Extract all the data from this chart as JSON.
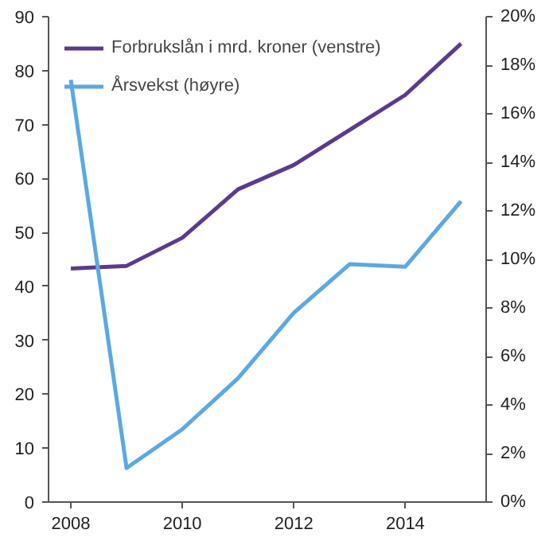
{
  "chart_data": {
    "type": "line",
    "x": [
      2008,
      2009,
      2010,
      2011,
      2012,
      2013,
      2014,
      2015
    ],
    "series": [
      {
        "name": "Forbrukslån i mrd. kroner (venstre)",
        "color": "#5b3a8e",
        "values": [
          43.3,
          43.8,
          49,
          58,
          62.5,
          69,
          75.5,
          85
        ]
      },
      {
        "name": "Årsvekst (høyre)",
        "color": "#5ca8e2",
        "axis": "y2",
        "values": [
          17.4,
          1.4,
          3.0,
          5.1,
          7.8,
          9.8,
          9.7,
          12.4
        ]
      }
    ],
    "xlim": [
      2007.6,
      2015.45
    ],
    "xticks": [
      2008,
      2010,
      2012,
      2014
    ],
    "ylim": [
      0,
      90
    ],
    "yticks": [
      0,
      10,
      20,
      30,
      40,
      50,
      60,
      70,
      80,
      90
    ],
    "y2lim": [
      0,
      20
    ],
    "y2ticks": [
      {
        "value": 0,
        "label": "0%"
      },
      {
        "value": 2,
        "label": "2%"
      },
      {
        "value": 4,
        "label": "4%"
      },
      {
        "value": 6,
        "label": "6%"
      },
      {
        "value": 8,
        "label": "8%"
      },
      {
        "value": 10,
        "label": "10%"
      },
      {
        "value": 12,
        "label": "12%"
      },
      {
        "value": 14,
        "label": "14%"
      },
      {
        "value": 16,
        "label": "16%"
      },
      {
        "value": 18,
        "label": "18%"
      },
      {
        "value": 20,
        "label": "20%"
      }
    ],
    "grid": false,
    "legend": "top left",
    "marker": "none",
    "line_style": "solid"
  }
}
